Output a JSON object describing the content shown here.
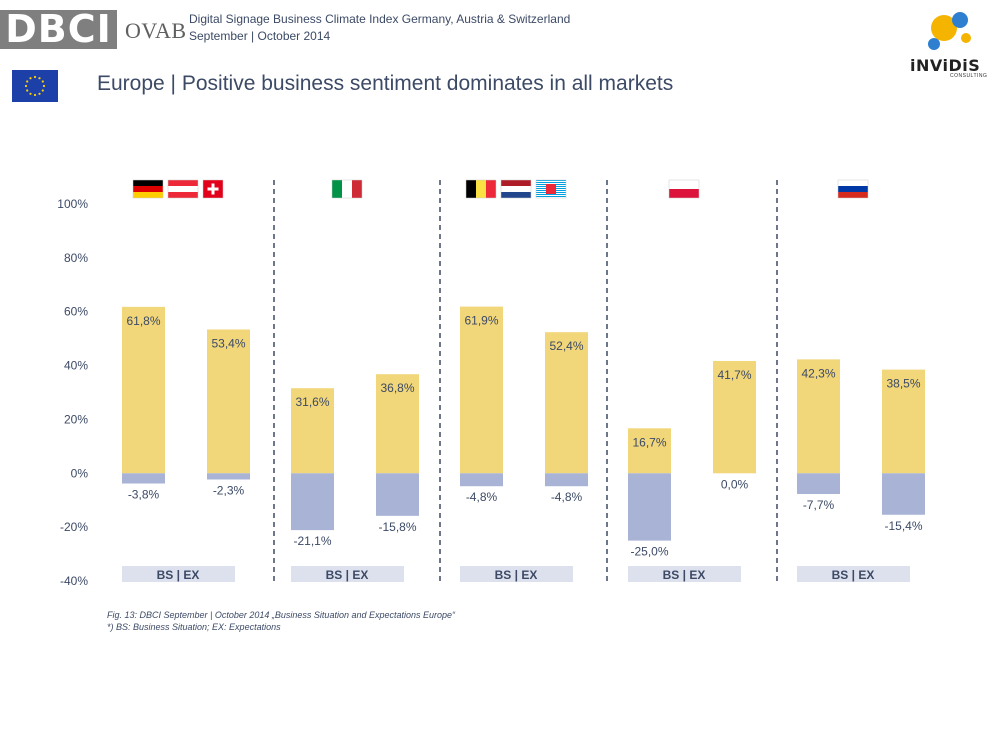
{
  "header": {
    "logo_text": "DBCI",
    "partner_logo": "OVAB",
    "line1": "Digital Signage Business Climate Index Germany, Austria & Switzerland",
    "line2": "September | October 2014",
    "consultant_logo": "iNViDiS",
    "consultant_sub": "CONSULTING"
  },
  "page_title": "Europe | Positive business sentiment dominates in all markets",
  "chart_data": {
    "type": "bar",
    "ylim": [
      -40,
      100
    ],
    "yticks": [
      100,
      80,
      60,
      40,
      20,
      0,
      -20,
      -40
    ],
    "ytick_suffix": "%",
    "positive_color": "#f1d67a",
    "negative_color": "#a8b3d6",
    "group_label": "BS   |   EX",
    "groups": [
      {
        "flags": [
          "germany",
          "austria",
          "switzerland"
        ],
        "bs_pos": "61,8%",
        "bs_neg": "-3,8%",
        "ex_pos": "53,4%",
        "ex_neg": "-2,3%",
        "values": {
          "bs_pos": 61.8,
          "bs_neg": -3.8,
          "ex_pos": 53.4,
          "ex_neg": -2.3
        }
      },
      {
        "flags": [
          "italy"
        ],
        "bs_pos": "31,6%",
        "bs_neg": "-21,1%",
        "ex_pos": "36,8%",
        "ex_neg": "-15,8%",
        "values": {
          "bs_pos": 31.6,
          "bs_neg": -21.1,
          "ex_pos": 36.8,
          "ex_neg": -15.8
        }
      },
      {
        "flags": [
          "belgium",
          "netherlands",
          "luxembourg"
        ],
        "bs_pos": "61,9%",
        "bs_neg": "-4,8%",
        "ex_pos": "52,4%",
        "ex_neg": "-4,8%",
        "values": {
          "bs_pos": 61.9,
          "bs_neg": -4.8,
          "ex_pos": 52.4,
          "ex_neg": -4.8
        }
      },
      {
        "flags": [
          "poland"
        ],
        "bs_pos": "16,7%",
        "bs_neg": "-25,0%",
        "ex_pos": "41,7%",
        "ex_neg": "0,0%",
        "values": {
          "bs_pos": 16.7,
          "bs_neg": -25.0,
          "ex_pos": 41.7,
          "ex_neg": 0.0
        }
      },
      {
        "flags": [
          "russia"
        ],
        "bs_pos": "42,3%",
        "bs_neg": "-7,7%",
        "ex_pos": "38,5%",
        "ex_neg": "-15,4%",
        "values": {
          "bs_pos": 42.3,
          "bs_neg": -7.7,
          "ex_pos": 38.5,
          "ex_neg": -15.4
        }
      }
    ]
  },
  "caption": {
    "line1": "Fig. 13: DBCI September | October 2014 „Business Situation and Expectations Europe“",
    "line2": "*) BS: Business Situation; EX: Expectations"
  }
}
